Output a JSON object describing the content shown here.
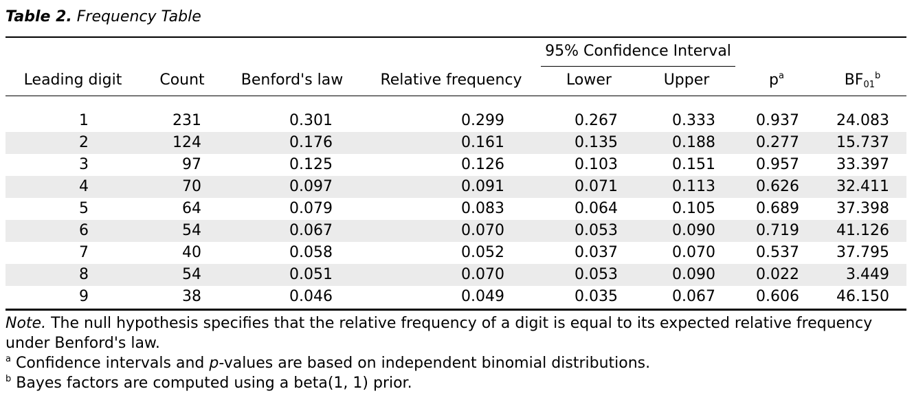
{
  "caption": {
    "label": "Table 2.",
    "title": "Frequency Table"
  },
  "header": {
    "ci_group": "95% Confidence Interval",
    "leading_digit": "Leading digit",
    "count": "Count",
    "benford": "Benford's law",
    "relative_frequency": "Relative frequency",
    "lower": "Lower",
    "upper": "Upper",
    "p": "p",
    "p_sup": "a",
    "bf_main": "BF",
    "bf_sub": "01",
    "bf_sup": "b"
  },
  "rows": [
    {
      "digit": "1",
      "count": "231",
      "benford": "0.301",
      "relfreq": "0.299",
      "lower": "0.267",
      "upper": "0.333",
      "p": "0.937",
      "bf": "24.083"
    },
    {
      "digit": "2",
      "count": "124",
      "benford": "0.176",
      "relfreq": "0.161",
      "lower": "0.135",
      "upper": "0.188",
      "p": "0.277",
      "bf": "15.737"
    },
    {
      "digit": "3",
      "count": "97",
      "benford": "0.125",
      "relfreq": "0.126",
      "lower": "0.103",
      "upper": "0.151",
      "p": "0.957",
      "bf": "33.397"
    },
    {
      "digit": "4",
      "count": "70",
      "benford": "0.097",
      "relfreq": "0.091",
      "lower": "0.071",
      "upper": "0.113",
      "p": "0.626",
      "bf": "32.411"
    },
    {
      "digit": "5",
      "count": "64",
      "benford": "0.079",
      "relfreq": "0.083",
      "lower": "0.064",
      "upper": "0.105",
      "p": "0.689",
      "bf": "37.398"
    },
    {
      "digit": "6",
      "count": "54",
      "benford": "0.067",
      "relfreq": "0.070",
      "lower": "0.053",
      "upper": "0.090",
      "p": "0.719",
      "bf": "41.126"
    },
    {
      "digit": "7",
      "count": "40",
      "benford": "0.058",
      "relfreq": "0.052",
      "lower": "0.037",
      "upper": "0.070",
      "p": "0.537",
      "bf": "37.795"
    },
    {
      "digit": "8",
      "count": "54",
      "benford": "0.051",
      "relfreq": "0.070",
      "lower": "0.053",
      "upper": "0.090",
      "p": "0.022",
      "bf": "3.449"
    },
    {
      "digit": "9",
      "count": "38",
      "benford": "0.046",
      "relfreq": "0.049",
      "lower": "0.035",
      "upper": "0.067",
      "p": "0.606",
      "bf": "46.150"
    }
  ],
  "notes": {
    "note_label": "Note.",
    "note_text": " The null hypothesis specifies that the relative frequency of a digit is equal to its expected relative frequency under Benford's law.",
    "a_marker": "a",
    "a_text_1": " Confidence intervals and ",
    "a_text_p": "p",
    "a_text_2": "-values are based on independent binomial distributions.",
    "b_marker": "b",
    "b_text": " Bayes factors are computed using a beta(1, 1) prior."
  },
  "colors": {
    "row_shade": "#ebebeb",
    "rule": "#000000"
  }
}
